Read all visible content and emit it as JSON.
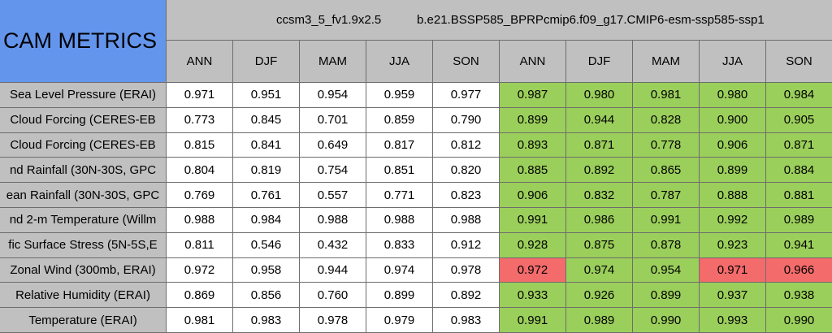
{
  "table": {
    "title": "CAM METRICS",
    "groups": [
      "ccsm3_5_fv1.9x2.5",
      "b.e21.BSSP585_BPRPcmip6.f09_g17.CMIP6-esm-ssp585-ssp1"
    ],
    "columns": [
      "ANN",
      "DJF",
      "MAM",
      "JJA",
      "SON",
      "ANN",
      "DJF",
      "MAM",
      "JJA",
      "SON"
    ],
    "rows": [
      {
        "label": "Sea Level Pressure (ERAI)",
        "values": [
          "0.971",
          "0.951",
          "0.954",
          "0.959",
          "0.977",
          "0.987",
          "0.980",
          "0.981",
          "0.980",
          "0.984"
        ],
        "fills": [
          null,
          null,
          null,
          null,
          null,
          "#9bcf5b",
          "#9bcf5b",
          "#9bcf5b",
          "#9bcf5b",
          "#9bcf5b"
        ]
      },
      {
        "label": "Cloud Forcing (CERES-EB",
        "values": [
          "0.773",
          "0.845",
          "0.701",
          "0.859",
          "0.790",
          "0.899",
          "0.944",
          "0.828",
          "0.900",
          "0.905"
        ],
        "fills": [
          null,
          null,
          null,
          null,
          null,
          "#9bcf5b",
          "#9bcf5b",
          "#9bcf5b",
          "#9bcf5b",
          "#9bcf5b"
        ]
      },
      {
        "label": "Cloud Forcing (CERES-EB",
        "values": [
          "0.815",
          "0.841",
          "0.649",
          "0.817",
          "0.812",
          "0.893",
          "0.871",
          "0.778",
          "0.906",
          "0.871"
        ],
        "fills": [
          null,
          null,
          null,
          null,
          null,
          "#9bcf5b",
          "#9bcf5b",
          "#9bcf5b",
          "#9bcf5b",
          "#9bcf5b"
        ]
      },
      {
        "label": "nd Rainfall (30N-30S, GPC",
        "values": [
          "0.804",
          "0.819",
          "0.754",
          "0.851",
          "0.820",
          "0.885",
          "0.892",
          "0.865",
          "0.899",
          "0.884"
        ],
        "fills": [
          null,
          null,
          null,
          null,
          null,
          "#9bcf5b",
          "#9bcf5b",
          "#9bcf5b",
          "#9bcf5b",
          "#9bcf5b"
        ]
      },
      {
        "label": "ean Rainfall (30N-30S, GPC",
        "values": [
          "0.769",
          "0.761",
          "0.557",
          "0.771",
          "0.823",
          "0.906",
          "0.832",
          "0.787",
          "0.888",
          "0.881"
        ],
        "fills": [
          null,
          null,
          null,
          null,
          null,
          "#9bcf5b",
          "#9bcf5b",
          "#9bcf5b",
          "#9bcf5b",
          "#9bcf5b"
        ]
      },
      {
        "label": "nd 2-m Temperature (Willm",
        "values": [
          "0.988",
          "0.984",
          "0.988",
          "0.988",
          "0.988",
          "0.991",
          "0.986",
          "0.991",
          "0.992",
          "0.989"
        ],
        "fills": [
          null,
          null,
          null,
          null,
          null,
          "#9bcf5b",
          "#9bcf5b",
          "#9bcf5b",
          "#9bcf5b",
          "#9bcf5b"
        ]
      },
      {
        "label": "fic Surface Stress (5N-5S,E",
        "values": [
          "0.811",
          "0.546",
          "0.432",
          "0.833",
          "0.912",
          "0.928",
          "0.875",
          "0.878",
          "0.923",
          "0.941"
        ],
        "fills": [
          null,
          null,
          null,
          null,
          null,
          "#9bcf5b",
          "#9bcf5b",
          "#9bcf5b",
          "#9bcf5b",
          "#9bcf5b"
        ]
      },
      {
        "label": "Zonal Wind (300mb, ERAI)",
        "values": [
          "0.972",
          "0.958",
          "0.944",
          "0.974",
          "0.978",
          "0.972",
          "0.974",
          "0.954",
          "0.971",
          "0.966"
        ],
        "fills": [
          null,
          null,
          null,
          null,
          null,
          "#f46b6b",
          "#9bcf5b",
          "#9bcf5b",
          "#f46b6b",
          "#f46b6b"
        ]
      },
      {
        "label": "Relative Humidity (ERAI)",
        "values": [
          "0.869",
          "0.856",
          "0.760",
          "0.899",
          "0.892",
          "0.933",
          "0.926",
          "0.899",
          "0.937",
          "0.938"
        ],
        "fills": [
          null,
          null,
          null,
          null,
          null,
          "#9bcf5b",
          "#9bcf5b",
          "#9bcf5b",
          "#9bcf5b",
          "#9bcf5b"
        ]
      },
      {
        "label": "Temperature (ERAI)",
        "values": [
          "0.981",
          "0.983",
          "0.978",
          "0.979",
          "0.983",
          "0.991",
          "0.989",
          "0.990",
          "0.993",
          "0.990"
        ],
        "fills": [
          null,
          null,
          null,
          null,
          null,
          "#9bcf5b",
          "#9bcf5b",
          "#9bcf5b",
          "#9bcf5b",
          "#9bcf5b"
        ]
      }
    ]
  }
}
